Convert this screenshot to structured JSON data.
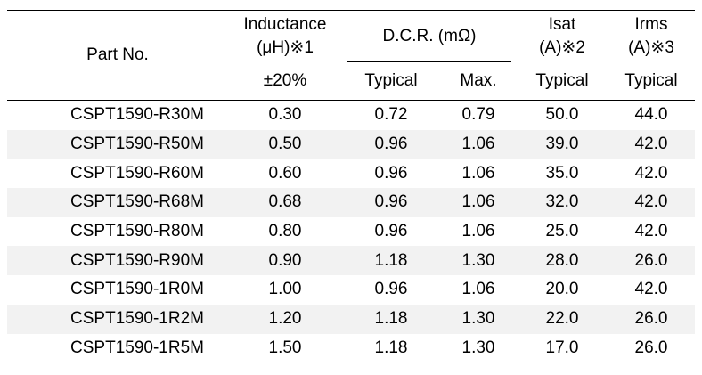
{
  "header": {
    "part_no": "Part No.",
    "inductance_line1": "Inductance",
    "inductance_line2": "(μH)※1",
    "inductance_tol": "±20%",
    "dcr": "D.C.R. (mΩ)",
    "dcr_typ": "Typical",
    "dcr_max": "Max.",
    "isat_line1": "Isat",
    "isat_line2": "(A)※2",
    "isat_sub": "Typical",
    "irms_line1": "Irms",
    "irms_line2": "(A)※3",
    "irms_sub": "Typical"
  },
  "rows": [
    {
      "part": "CSPT1590-R30M",
      "ind": "0.30",
      "dcr_typ": "0.72",
      "dcr_max": "0.79",
      "isat": "50.0",
      "irms": "44.0"
    },
    {
      "part": "CSPT1590-R50M",
      "ind": "0.50",
      "dcr_typ": "0.96",
      "dcr_max": "1.06",
      "isat": "39.0",
      "irms": "42.0"
    },
    {
      "part": "CSPT1590-R60M",
      "ind": "0.60",
      "dcr_typ": "0.96",
      "dcr_max": "1.06",
      "isat": "35.0",
      "irms": "42.0"
    },
    {
      "part": "CSPT1590-R68M",
      "ind": "0.68",
      "dcr_typ": "0.96",
      "dcr_max": "1.06",
      "isat": "32.0",
      "irms": "42.0"
    },
    {
      "part": "CSPT1590-R80M",
      "ind": "0.80",
      "dcr_typ": "0.96",
      "dcr_max": "1.06",
      "isat": "25.0",
      "irms": "42.0"
    },
    {
      "part": "CSPT1590-R90M",
      "ind": "0.90",
      "dcr_typ": "1.18",
      "dcr_max": "1.30",
      "isat": "28.0",
      "irms": "26.0"
    },
    {
      "part": "CSPT1590-1R0M",
      "ind": "1.00",
      "dcr_typ": "0.96",
      "dcr_max": "1.06",
      "isat": "20.0",
      "irms": "42.0"
    },
    {
      "part": "CSPT1590-1R2M",
      "ind": "1.20",
      "dcr_typ": "1.18",
      "dcr_max": "1.30",
      "isat": "22.0",
      "irms": "26.0"
    },
    {
      "part": "CSPT1590-1R5M",
      "ind": "1.50",
      "dcr_typ": "1.18",
      "dcr_max": "1.30",
      "isat": "17.0",
      "irms": "26.0"
    }
  ]
}
